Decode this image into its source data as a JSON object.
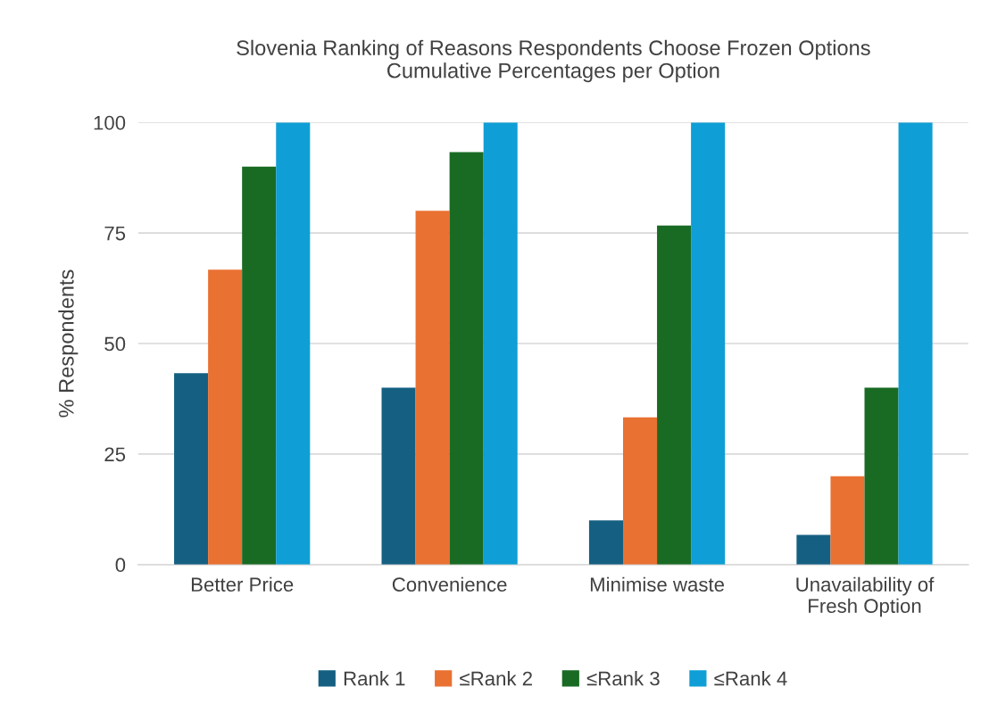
{
  "chart_data": {
    "type": "bar",
    "title": "Slovenia Ranking of Reasons Respondents Choose Frozen Options\nCumulative Percentages per Option",
    "ylabel": "% Respondents",
    "categories": [
      "Better Price",
      "Convenience",
      "Minimise waste",
      "Unavailability of\nFresh Option"
    ],
    "series": [
      {
        "name": "Rank 1",
        "color": "#156082",
        "values": [
          43.3,
          40,
          10,
          6.7
        ]
      },
      {
        "name": "≤Rank 2",
        "color": "#e97132",
        "values": [
          66.7,
          80,
          33.3,
          20
        ]
      },
      {
        "name": "≤Rank 3",
        "color": "#196b24",
        "values": [
          90,
          93.3,
          76.7,
          40
        ]
      },
      {
        "name": "≤Rank 4",
        "color": "#0f9ed5",
        "values": [
          100,
          100,
          100,
          100
        ]
      }
    ],
    "ylim": [
      0,
      100
    ],
    "yticks": [
      0,
      25,
      50,
      75,
      100
    ],
    "grid": "y",
    "legend": "bottom"
  }
}
